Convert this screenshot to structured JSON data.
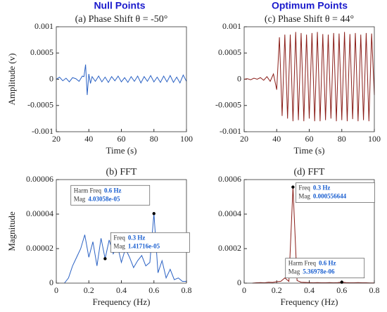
{
  "column_titles": [
    "Null Points",
    "Optimum Points"
  ],
  "chart_data": [
    {
      "type": "line",
      "title": "(a) Phase Shift θ = -50°",
      "xlabel": "Time (s)",
      "ylabel": "Amplitude (v)",
      "color": "#2b62c4",
      "x": [
        20,
        22,
        24,
        26,
        28,
        30,
        32,
        34,
        36,
        37,
        38,
        39,
        40,
        41,
        42,
        44,
        46,
        48,
        50,
        52,
        54,
        56,
        58,
        60,
        62,
        64,
        66,
        68,
        70,
        72,
        74,
        76,
        78,
        80,
        82,
        84,
        86,
        88,
        90,
        92,
        94,
        96,
        98,
        100
      ],
      "values": [
        0,
        4e-05,
        -3e-05,
        2e-05,
        -5e-05,
        3e-05,
        1e-05,
        -4e-05,
        6e-05,
        5e-05,
        0.00028,
        -0.0003,
        0.0001,
        -8e-05,
        5e-05,
        -4e-05,
        6e-05,
        -5e-05,
        4e-05,
        -6e-05,
        5e-05,
        -3e-05,
        6e-05,
        -5e-05,
        3e-05,
        -6e-05,
        5e-05,
        -4e-05,
        6e-05,
        -7e-05,
        5e-05,
        -4e-05,
        7e-05,
        -5e-05,
        4e-05,
        -6e-05,
        6e-05,
        -5e-05,
        7e-05,
        -6e-05,
        4e-05,
        -7e-05,
        8e-05,
        -4e-05
      ],
      "xlim": [
        20,
        100
      ],
      "ylim": [
        -0.001,
        0.001
      ],
      "xticks": [
        20,
        40,
        60,
        80,
        100
      ],
      "yticks": [
        -0.001,
        -0.0005,
        0,
        0.0005,
        0.001
      ]
    },
    {
      "type": "line",
      "title": "(b) FFT",
      "xlabel": "Frequency (Hz)",
      "ylabel": "Magnitude",
      "color": "#2b62c4",
      "x": [
        0.05,
        0.075,
        0.1,
        0.125,
        0.15,
        0.175,
        0.2,
        0.225,
        0.25,
        0.275,
        0.3,
        0.325,
        0.35,
        0.375,
        0.4,
        0.425,
        0.45,
        0.475,
        0.5,
        0.525,
        0.55,
        0.575,
        0.6,
        0.625,
        0.65,
        0.675,
        0.7,
        0.725,
        0.75,
        0.775,
        0.8
      ],
      "values": [
        0,
        3e-06,
        1e-05,
        1.5e-05,
        2e-05,
        2.8e-05,
        1.5e-05,
        2.4e-05,
        1e-05,
        2.6e-05,
        1.41716e-05,
        2.5e-05,
        1.7e-05,
        2.2e-05,
        1.2e-05,
        2e-05,
        1.5e-05,
        9e-06,
        1.3e-05,
        1.6e-05,
        1e-05,
        1.2e-05,
        4.03058e-05,
        6e-06,
        1.3e-05,
        3e-06,
        8e-06,
        2e-06,
        3e-06,
        1e-06,
        1e-06
      ],
      "xlim": [
        0,
        0.8
      ],
      "ylim": [
        0,
        6e-05
      ],
      "xticks": [
        0,
        0.2,
        0.4,
        0.6,
        0.8
      ],
      "yticks": [
        0,
        2e-05,
        4e-05,
        6e-05
      ],
      "annotations": [
        {
          "x": 0.6,
          "y": 4.03058e-05,
          "freq_label": "Harm Freq",
          "freq": "0.6 Hz",
          "mag_label": "Mag",
          "mag": "4.03058e-05"
        },
        {
          "x": 0.3,
          "y": 1.41716e-05,
          "freq_label": "Freq",
          "freq": "0.3 Hz",
          "mag_label": "Mag",
          "mag": "1.41716e-05"
        }
      ]
    },
    {
      "type": "line",
      "title": "(c) Phase Shift θ = 44°",
      "xlabel": "Time (s)",
      "ylabel": "",
      "color": "#8b1f1a",
      "x": [
        20,
        22,
        24,
        26,
        28,
        30,
        32,
        34,
        36,
        38,
        40,
        41.67,
        43.33,
        45,
        46.67,
        48.33,
        50,
        51.67,
        53.33,
        55,
        56.67,
        58.33,
        60,
        61.67,
        63.33,
        65,
        66.67,
        68.33,
        70,
        71.67,
        73.33,
        75,
        76.67,
        78.33,
        80,
        81.67,
        83.33,
        85,
        86.67,
        88.33,
        90,
        91.67,
        93.33,
        95,
        96.67,
        98.33,
        100
      ],
      "values": [
        0,
        1e-05,
        -1e-05,
        2e-05,
        0,
        3e-05,
        -2e-05,
        5e-05,
        -4e-05,
        0.0001,
        -0.0002,
        0.0008,
        -0.0007,
        0.00085,
        -0.00075,
        0.00085,
        -0.0008,
        0.0009,
        -0.00078,
        0.00088,
        -0.0008,
        0.00085,
        -0.00075,
        0.00088,
        -0.0008,
        0.0009,
        -0.0008,
        0.00086,
        -0.00078,
        0.00085,
        -0.00075,
        0.00088,
        -0.0008,
        0.00087,
        -0.00078,
        0.0009,
        -0.0008,
        0.00086,
        -0.00076,
        0.00088,
        -0.0008,
        0.00085,
        -0.00078,
        0.00088,
        -0.0008,
        0.00087,
        -0.0003
      ],
      "xlim": [
        20,
        100
      ],
      "ylim": [
        -0.001,
        0.001
      ],
      "xticks": [
        20,
        40,
        60,
        80,
        100
      ],
      "yticks": [
        -0.001,
        -0.0005,
        0,
        0.0005,
        0.001
      ]
    },
    {
      "type": "line",
      "title": "(d) FFT",
      "xlabel": "Frequency (Hz)",
      "ylabel": "",
      "color": "#8b1f1a",
      "x": [
        0.05,
        0.075,
        0.1,
        0.125,
        0.15,
        0.175,
        0.2,
        0.225,
        0.25,
        0.275,
        0.3,
        0.325,
        0.35,
        0.375,
        0.4,
        0.425,
        0.45,
        0.475,
        0.5,
        0.525,
        0.55,
        0.575,
        0.6,
        0.625,
        0.65,
        0.675,
        0.7,
        0.725,
        0.75,
        0.775,
        0.8
      ],
      "values": [
        0,
        2e-06,
        3e-06,
        2e-06,
        5e-06,
        4e-06,
        8e-06,
        1e-05,
        3e-05,
        1e-05,
        0.000556644,
        1.5e-05,
        5e-06,
        4e-06,
        3e-06,
        2e-06,
        3e-06,
        2e-06,
        2e-06,
        3e-06,
        2e-06,
        3e-06,
        5.36978e-06,
        3e-06,
        2e-06,
        2e-06,
        3e-06,
        2e-06,
        2e-06,
        1e-06,
        1e-06
      ],
      "xlim": [
        0,
        0.8
      ],
      "ylim": [
        0,
        0.0006
      ],
      "xticks": [
        0,
        0.2,
        0.4,
        0.6,
        0.8
      ],
      "yticks": [
        0,
        0.0002,
        0.0004,
        0.0006
      ],
      "annotations": [
        {
          "x": 0.3,
          "y": 0.000556644,
          "freq_label": "Freq",
          "freq": "0.3 Hz",
          "mag_label": "Mag",
          "mag": "0.000556644"
        },
        {
          "x": 0.6,
          "y": 5.36978e-06,
          "freq_label": "Harm Freq",
          "freq": "0.6 Hz",
          "mag_label": "Mag",
          "mag": "5.36978e-06"
        }
      ]
    }
  ]
}
